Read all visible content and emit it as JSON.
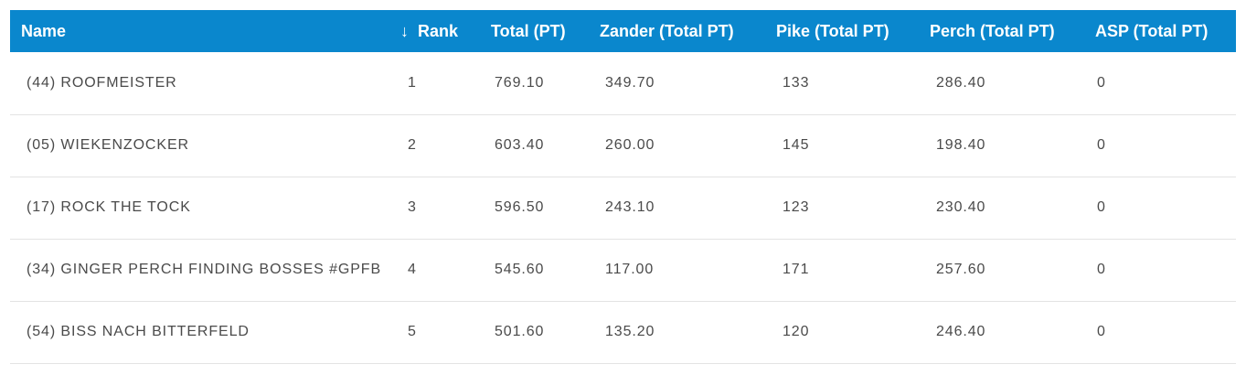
{
  "table": {
    "headers": {
      "name": "Name",
      "sort_icon": "arrow-down-icon",
      "sort_glyph": "↓",
      "rank": "Rank",
      "total": "Total (PT)",
      "zander": "Zander (Total PT)",
      "pike": "Pike (Total PT)",
      "perch": "Perch (Total PT)",
      "asp": "ASP (Total PT)"
    },
    "rows": [
      {
        "name": "(44) ROOFMEISTER",
        "rank": "1",
        "total": "769.10",
        "zander": "349.70",
        "pike": "133",
        "perch": "286.40",
        "asp": "0"
      },
      {
        "name": "(05) WIEKENZOCKER",
        "rank": "2",
        "total": "603.40",
        "zander": "260.00",
        "pike": "145",
        "perch": "198.40",
        "asp": "0"
      },
      {
        "name": "(17) ROCK THE TOCK",
        "rank": "3",
        "total": "596.50",
        "zander": "243.10",
        "pike": "123",
        "perch": "230.40",
        "asp": "0"
      },
      {
        "name": "(34) GINGER PERCH FINDING BOSSES #GPFB",
        "rank": "4",
        "total": "545.60",
        "zander": "117.00",
        "pike": "171",
        "perch": "257.60",
        "asp": "0"
      },
      {
        "name": "(54) BISS NACH BITTERFELD",
        "rank": "5",
        "total": "501.60",
        "zander": "135.20",
        "pike": "120",
        "perch": "246.40",
        "asp": "0"
      }
    ]
  },
  "colors": {
    "header_bg": "#0a87cd",
    "header_text": "#ffffff",
    "row_text": "#4a4a4a",
    "row_border": "#e3e3e3"
  }
}
